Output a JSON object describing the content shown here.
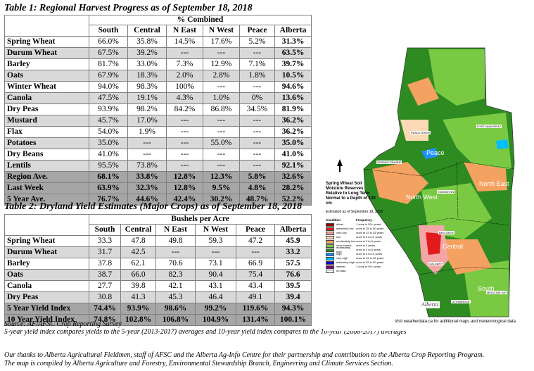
{
  "table1": {
    "title": "Table 1: Regional Harvest Progress as of September 18, 2018",
    "group_header": "% Combined",
    "columns": [
      "South",
      "Central",
      "N East",
      "N West",
      "Peace",
      "Alberta"
    ],
    "rows": [
      {
        "crop": "Spring Wheat",
        "values": [
          "66.0%",
          "35.8%",
          "14.5%",
          "17.6%",
          "5.2%",
          "31.3%"
        ]
      },
      {
        "crop": "Durum Wheat",
        "values": [
          "67.5%",
          "39.2%",
          "---",
          "---",
          "---",
          "63.5%"
        ]
      },
      {
        "crop": "Barley",
        "values": [
          "81.7%",
          "33.0%",
          "7.3%",
          "12.9%",
          "7.1%",
          "39.7%"
        ]
      },
      {
        "crop": "Oats",
        "values": [
          "67.9%",
          "18.3%",
          "2.0%",
          "2.8%",
          "1.8%",
          "10.5%"
        ]
      },
      {
        "crop": "Winter Wheat",
        "values": [
          "94.0%",
          "98.3%",
          "100%",
          "---",
          "---",
          "94.6%"
        ]
      },
      {
        "crop": "Canola",
        "values": [
          "47.5%",
          "19.1%",
          "4.3%",
          "1.0%",
          "0%",
          "13.6%"
        ]
      },
      {
        "crop": "Dry Peas",
        "values": [
          "93.9%",
          "98.2%",
          "84.2%",
          "86.8%",
          "34.5%",
          "81.9%"
        ]
      },
      {
        "crop": "Mustard",
        "values": [
          "45.7%",
          "17.0%",
          "---",
          "---",
          "---",
          "36.2%"
        ]
      },
      {
        "crop": "Flax",
        "values": [
          "54.0%",
          "1.9%",
          "---",
          "---",
          "---",
          "36.2%"
        ]
      },
      {
        "crop": "Potatoes",
        "values": [
          "35.0%",
          "---",
          "---",
          "55.0%",
          "---",
          "35.0%"
        ]
      },
      {
        "crop": "Dry Beans",
        "values": [
          "41.0%",
          "---",
          "---",
          "---",
          "---",
          "41.0%"
        ]
      },
      {
        "crop": "Lentils",
        "values": [
          "95.5%",
          "73.8%",
          "---",
          "---",
          "---",
          "92.1%"
        ]
      }
    ],
    "summary": [
      {
        "crop": "Region Ave.",
        "values": [
          "68.1%",
          "33.8%",
          "12.8%",
          "12.3%",
          "5.8%",
          "32.6%"
        ]
      },
      {
        "crop": "Last Week",
        "values": [
          "63.9%",
          "32.3%",
          "12.8%",
          "9.5%",
          "4.8%",
          "28.2%"
        ]
      },
      {
        "crop": "5 Year Ave.",
        "values": [
          "76.7%",
          "44.6%",
          "42.4%",
          "30.2%",
          "48.7%",
          "52.2%"
        ]
      }
    ]
  },
  "table2": {
    "title": "Table 2: Dryland Yield Estimates (Major Crops) as of September 18, 2018",
    "group_header": "Bushels per Acre",
    "columns": [
      "South",
      "Central",
      "N East",
      "N West",
      "Peace",
      "Alberta"
    ],
    "rows": [
      {
        "crop": "Spring Wheat",
        "values": [
          "33.3",
          "47.8",
          "49.8",
          "59.3",
          "47.2",
          "45.9"
        ]
      },
      {
        "crop": "Durum Wheat",
        "values": [
          "31.7",
          "42.5",
          "---",
          "---",
          "---",
          "33.2"
        ]
      },
      {
        "crop": "Barley",
        "values": [
          "37.8",
          "62.1",
          "70.6",
          "73.1",
          "66.9",
          "57.5"
        ]
      },
      {
        "crop": "Oats",
        "values": [
          "38.7",
          "66.0",
          "82.3",
          "90.4",
          "75.4",
          "76.6"
        ]
      },
      {
        "crop": "Canola",
        "values": [
          "27.7",
          "39.8",
          "42.1",
          "43.1",
          "43.4",
          "39.5"
        ]
      },
      {
        "crop": "Dry Peas",
        "values": [
          "30.8",
          "41.3",
          "45.3",
          "46.4",
          "49.1",
          "39.4"
        ]
      }
    ],
    "summary": [
      {
        "crop": "5 Year Yield Index",
        "values": [
          "74.4%",
          "93.9%",
          "98.6%",
          "99.2%",
          "119.6%",
          "94.3%"
        ]
      },
      {
        "crop": "10 Year Yield Index",
        "values": [
          "74.8%",
          "102.8%",
          "106.8%",
          "104.9%",
          "131.4%",
          "100.1%"
        ]
      }
    ]
  },
  "notes": {
    "source": "Source: AF/AFSC Crop Reporting Survey",
    "yield_note": "5-year yield index compares yields to the 5-year (2013-2017) averages and 10-year yield index compares to the 10-year (2008-2017) averages",
    "thanks_line1": "Our thanks to Alberta Agricultural Fieldmen, staff of AFSC and the Alberta Ag-Info Centre for their partnership and contribution to the Alberta Crop Reporting Program.",
    "thanks_line2": "The map is compiled by Alberta Agriculture and Forestry, Environmental Stewardship Branch, Engineering and Climate Services Section."
  },
  "map": {
    "legend_title": "Spring Wheat Soil Moisture Reserves Relative to Long Term Normal to a Depth of 120 cm",
    "estimated": "Estimated as of September 18, 2018",
    "legend_condition_header": "Condition",
    "legend_frequency_header": "Frequency",
    "legend": [
      {
        "label": "driest",
        "freq": "1 once in 50+ years",
        "color": "#8b0000"
      },
      {
        "label": "extremely low",
        "freq": "once in 25 to 50 years",
        "color": "#e31a1c"
      },
      {
        "label": "very low",
        "freq": "once in 12 to 25 years",
        "color": "#f4a6a6"
      },
      {
        "label": "low",
        "freq": "once in 6 to 12 years",
        "color": "#fdd9b5"
      },
      {
        "label": "moderately low",
        "freq": "once in 3 to 6 years",
        "color": "#f4a261"
      },
      {
        "label": "near normal",
        "freq": "once in 3 years",
        "color": "#7ac943"
      },
      {
        "label": "moderately high",
        "freq": "once in 3 to 6 years",
        "color": "#2e8b22"
      },
      {
        "label": "high",
        "freq": "once in 6 to 12 years",
        "color": "#1e90ff"
      },
      {
        "label": "very high",
        "freq": "once in 12 to 25 years",
        "color": "#00bfff"
      },
      {
        "label": "extremely high",
        "freq": "once in 25 to 50 years",
        "color": "#0000cd"
      },
      {
        "label": "wettest",
        "freq": "1 once in 50+ years",
        "color": "#800080"
      },
      {
        "label": "no data",
        "freq": "",
        "color": "#ffffff"
      }
    ],
    "regions": {
      "peace": "Peace",
      "north_east": "North East",
      "north_west": "North West",
      "central": "Central",
      "south": "South"
    },
    "cities": {
      "fort_mcmurray": "FORT McMURRAY",
      "edmonton": "EDMONTON",
      "calgary": "CALGARY",
      "lethbridge": "LETHBRIDGE",
      "medicine_hat": "MEDICINE HAT",
      "grande_prairie": "GRANDE PRAIRIE",
      "peace_river": "PEACE RIVER",
      "red_deer": "RED DEER"
    },
    "logo": "Alberta",
    "footer": "Visit weatherdata.ca for additional maps and meteorological data"
  },
  "colors": {
    "alt_row": "#d9d9d9",
    "summary_row": "#a6a6a6",
    "map_green": "#2e8b22",
    "map_light_green": "#7ac943"
  }
}
